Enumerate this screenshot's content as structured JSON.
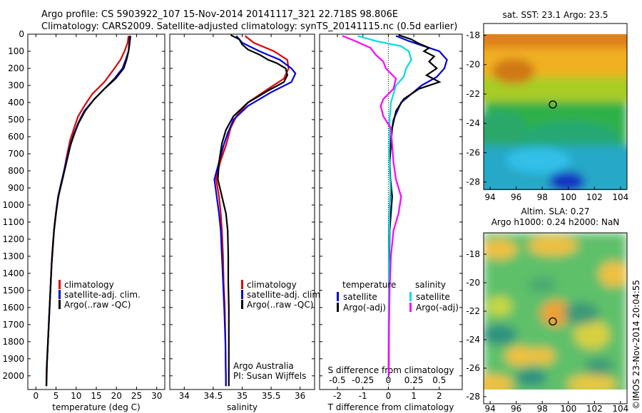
{
  "header": {
    "line1": "Argo profile: CS 5903922_107 15-Nov-2014 20141117_321 22.718S 98.806E",
    "line2": "Climatology: CARS2009. Satellite-adjusted climatology: synTS_20141115.nc (0.5d earlier)"
  },
  "footer": {
    "credit": "©IMOS 23-Nov-2014 20:04:55"
  },
  "chart_data": [
    {
      "type": "line",
      "id": "temperature",
      "xlabel": "temperature (deg C)",
      "ylabel": "",
      "xlim": [
        -2,
        32
      ],
      "ylim": [
        2080,
        0
      ],
      "xticks": [
        0,
        5,
        10,
        15,
        20,
        25,
        30
      ],
      "yticks": [
        0,
        100,
        200,
        300,
        400,
        500,
        600,
        700,
        800,
        900,
        1000,
        1100,
        1200,
        1300,
        1400,
        1500,
        1600,
        1700,
        1800,
        1900,
        2000
      ],
      "legend": [
        "climatology",
        "satellite-adj. clim.",
        "Argo(..raw -QC)"
      ],
      "series": [
        {
          "name": "climatology",
          "color": "#e00000",
          "points": [
            [
              23,
              10
            ],
            [
              22.8,
              50
            ],
            [
              22,
              100
            ],
            [
              21,
              150
            ],
            [
              19.5,
              200
            ],
            [
              17,
              280
            ],
            [
              14,
              350
            ],
            [
              12,
              420
            ],
            [
              10.5,
              480
            ],
            [
              9.5,
              550
            ],
            [
              8.5,
              620
            ],
            [
              7.8,
              700
            ],
            [
              7,
              800
            ],
            [
              6,
              900
            ],
            [
              5.2,
              1000
            ],
            [
              4.7,
              1100
            ],
            [
              4.3,
              1200
            ],
            [
              4,
              1300
            ],
            [
              3.8,
              1400
            ],
            [
              3.6,
              1500
            ],
            [
              3.4,
              1600
            ],
            [
              3.2,
              1700
            ],
            [
              3,
              1800
            ],
            [
              2.8,
              1900
            ],
            [
              2.7,
              2000
            ],
            [
              2.6,
              2060
            ]
          ]
        },
        {
          "name": "satellite-adj. clim.",
          "color": "#0000e0",
          "points": [
            [
              23.5,
              10
            ],
            [
              23.3,
              50
            ],
            [
              23,
              100
            ],
            [
              22.3,
              150
            ],
            [
              21.5,
              200
            ],
            [
              19.5,
              260
            ],
            [
              17,
              320
            ],
            [
              14.5,
              380
            ],
            [
              12,
              450
            ],
            [
              10.5,
              520
            ],
            [
              9.5,
              580
            ],
            [
              8.5,
              650
            ],
            [
              7.5,
              750
            ],
            [
              6.5,
              850
            ],
            [
              5.5,
              950
            ],
            [
              5,
              1050
            ],
            [
              4.5,
              1150
            ],
            [
              4.2,
              1250
            ],
            [
              3.9,
              1350
            ],
            [
              3.7,
              1450
            ],
            [
              3.5,
              1550
            ],
            [
              3.3,
              1650
            ],
            [
              3.1,
              1750
            ],
            [
              2.9,
              1850
            ],
            [
              2.7,
              1950
            ],
            [
              2.6,
              2060
            ]
          ]
        },
        {
          "name": "Argo(..raw -QC)",
          "color": "#000000",
          "points": [
            [
              23.3,
              10
            ],
            [
              23.2,
              50
            ],
            [
              23,
              100
            ],
            [
              22.5,
              150
            ],
            [
              21.8,
              200
            ],
            [
              19.8,
              260
            ],
            [
              17,
              320
            ],
            [
              14.5,
              380
            ],
            [
              12.2,
              450
            ],
            [
              10.6,
              520
            ],
            [
              9.6,
              580
            ],
            [
              8.6,
              650
            ],
            [
              7.6,
              750
            ],
            [
              6.6,
              850
            ],
            [
              5.6,
              950
            ],
            [
              5,
              1050
            ],
            [
              4.5,
              1150
            ],
            [
              4.2,
              1250
            ],
            [
              3.9,
              1350
            ],
            [
              3.7,
              1450
            ],
            [
              3.5,
              1550
            ],
            [
              3.3,
              1650
            ],
            [
              3.1,
              1750
            ],
            [
              2.9,
              1850
            ],
            [
              2.7,
              1950
            ],
            [
              2.6,
              2060
            ]
          ]
        }
      ]
    },
    {
      "type": "line",
      "id": "salinity",
      "xlabel": "salinity",
      "xlim": [
        33.75,
        36.25
      ],
      "ylim": [
        2080,
        0
      ],
      "xticks": [
        34,
        34.5,
        35,
        35.5,
        36
      ],
      "legend": [
        "climatology",
        "satellite-adj. clim.",
        "Argo(..raw -QC)"
      ],
      "annotation": [
        "Argo Australia",
        "PI: Susan Wijffels"
      ],
      "series": [
        {
          "name": "climatology",
          "color": "#e00000",
          "points": [
            [
              35.05,
              10
            ],
            [
              35.2,
              50
            ],
            [
              35.55,
              100
            ],
            [
              35.78,
              150
            ],
            [
              35.8,
              200
            ],
            [
              35.72,
              260
            ],
            [
              35.45,
              320
            ],
            [
              35.1,
              400
            ],
            [
              34.9,
              480
            ],
            [
              34.8,
              550
            ],
            [
              34.72,
              650
            ],
            [
              34.62,
              750
            ],
            [
              34.55,
              850
            ],
            [
              34.6,
              950
            ],
            [
              34.63,
              1050
            ],
            [
              34.65,
              1150
            ],
            [
              34.67,
              1300
            ],
            [
              34.68,
              1450
            ],
            [
              34.7,
              1600
            ],
            [
              34.71,
              1800
            ],
            [
              34.72,
              2060
            ]
          ]
        },
        {
          "name": "satellite-adj. clim.",
          "color": "#0000e0",
          "points": [
            [
              34.9,
              10
            ],
            [
              35.0,
              50
            ],
            [
              35.3,
              100
            ],
            [
              35.65,
              150
            ],
            [
              35.85,
              200
            ],
            [
              35.92,
              230
            ],
            [
              35.85,
              280
            ],
            [
              35.5,
              340
            ],
            [
              35.1,
              420
            ],
            [
              34.85,
              500
            ],
            [
              34.75,
              580
            ],
            [
              34.68,
              650
            ],
            [
              34.6,
              750
            ],
            [
              34.52,
              850
            ],
            [
              34.56,
              950
            ],
            [
              34.6,
              1050
            ],
            [
              34.63,
              1150
            ],
            [
              34.65,
              1300
            ],
            [
              34.67,
              1450
            ],
            [
              34.69,
              1600
            ],
            [
              34.71,
              1800
            ],
            [
              34.72,
              2060
            ]
          ]
        },
        {
          "name": "Argo(..raw -QC)",
          "color": "#000000",
          "points": [
            [
              34.8,
              5
            ],
            [
              34.95,
              30
            ],
            [
              35.0,
              60
            ],
            [
              35.1,
              90
            ],
            [
              35.3,
              120
            ],
            [
              35.45,
              150
            ],
            [
              35.6,
              170
            ],
            [
              35.75,
              200
            ],
            [
              35.78,
              240
            ],
            [
              35.72,
              280
            ],
            [
              35.45,
              330
            ],
            [
              35.1,
              400
            ],
            [
              34.85,
              480
            ],
            [
              34.72,
              560
            ],
            [
              34.65,
              640
            ],
            [
              34.6,
              750
            ],
            [
              34.58,
              850
            ],
            [
              34.65,
              950
            ],
            [
              34.72,
              1050
            ],
            [
              34.75,
              1150
            ],
            [
              34.76,
              1300
            ],
            [
              34.76,
              1450
            ],
            [
              34.77,
              1600
            ],
            [
              34.77,
              1800
            ],
            [
              34.77,
              2060
            ]
          ]
        }
      ]
    },
    {
      "type": "line",
      "id": "difference",
      "xlabel": "T difference from climatology",
      "xlabel2": "S difference from climatology",
      "xlim": [
        -2.7,
        2.9
      ],
      "ylim": [
        2080,
        0
      ],
      "xticks": [
        -2,
        -1,
        0,
        1,
        2
      ],
      "xtick_labels": [
        "-2",
        "-1",
        "0",
        "1",
        "2"
      ],
      "sticks": [
        -0.5,
        -0.25,
        0,
        0.25,
        0.5
      ],
      "stick_labels": [
        "-0.5",
        "-0.25",
        "0",
        "0.25",
        "0.5"
      ],
      "legend_titles": [
        "temperature",
        "salinity"
      ],
      "legend": [
        "satellite",
        "Argo(-adj)",
        "satellite",
        "Argo(-adj)"
      ],
      "series": [
        {
          "name": "satellite",
          "group": "temperature",
          "color": "#0000e0",
          "points": [
            [
              0.3,
              10
            ],
            [
              0.8,
              40
            ],
            [
              1.4,
              70
            ],
            [
              2.0,
              100
            ],
            [
              2.3,
              150
            ],
            [
              2.2,
              200
            ],
            [
              1.9,
              250
            ],
            [
              1.3,
              300
            ],
            [
              0.5,
              400
            ],
            [
              0.2,
              500
            ],
            [
              0.1,
              600
            ],
            [
              0.05,
              700
            ],
            [
              0.05,
              800
            ],
            [
              0.1,
              900
            ],
            [
              0.05,
              1000
            ],
            [
              0.02,
              1200
            ],
            [
              0.02,
              1500
            ],
            [
              0.01,
              2000
            ]
          ]
        },
        {
          "name": "Argo(-adj)",
          "group": "temperature",
          "color": "#000000",
          "points": [
            [
              0.4,
              5
            ],
            [
              0.9,
              30
            ],
            [
              1.2,
              55
            ],
            [
              1.6,
              80
            ],
            [
              1.4,
              100
            ],
            [
              1.8,
              130
            ],
            [
              1.6,
              160
            ],
            [
              1.9,
              200
            ],
            [
              1.5,
              240
            ],
            [
              2.0,
              280
            ],
            [
              1.2,
              320
            ],
            [
              0.6,
              380
            ],
            [
              0.3,
              450
            ],
            [
              0.15,
              550
            ],
            [
              0.1,
              650
            ],
            [
              0.05,
              750
            ],
            [
              0.08,
              850
            ],
            [
              0.15,
              950
            ],
            [
              0.1,
              1050
            ],
            [
              0.05,
              1150
            ],
            [
              0.04,
              1300
            ],
            [
              0.03,
              1500
            ],
            [
              0.02,
              1800
            ],
            [
              0.02,
              2000
            ]
          ]
        },
        {
          "name": "satellite",
          "group": "salinity",
          "color": "#00dddd",
          "points": [
            [
              -1.2,
              10
            ],
            [
              -0.5,
              40
            ],
            [
              0.5,
              70
            ],
            [
              0.8,
              100
            ],
            [
              0.9,
              150
            ],
            [
              0.7,
              200
            ],
            [
              0.6,
              250
            ],
            [
              0.3,
              300
            ],
            [
              0.1,
              400
            ],
            [
              0.05,
              500
            ],
            [
              0.05,
              600
            ],
            [
              0.03,
              700
            ],
            [
              0.05,
              800
            ],
            [
              0.08,
              900
            ],
            [
              0.05,
              1000
            ],
            [
              0.03,
              1200
            ],
            [
              0.02,
              1500
            ],
            [
              0.01,
              2000
            ]
          ]
        },
        {
          "name": "Argo(-adj)",
          "group": "salinity",
          "color": "#ff00ff",
          "points": [
            [
              -1.8,
              10
            ],
            [
              -1.3,
              40
            ],
            [
              -0.7,
              80
            ],
            [
              -0.5,
              120
            ],
            [
              -0.2,
              160
            ],
            [
              -0.1,
              200
            ],
            [
              0.3,
              260
            ],
            [
              0.2,
              320
            ],
            [
              -0.2,
              380
            ],
            [
              -0.3,
              420
            ],
            [
              -0.2,
              480
            ],
            [
              0.1,
              550
            ],
            [
              0.15,
              650
            ],
            [
              0.2,
              750
            ],
            [
              0.3,
              850
            ],
            [
              0.5,
              950
            ],
            [
              0.4,
              1050
            ],
            [
              0.2,
              1150
            ],
            [
              0.1,
              1300
            ],
            [
              0.05,
              1500
            ],
            [
              0.02,
              1800
            ],
            [
              0.01,
              2000
            ]
          ]
        }
      ]
    },
    {
      "type": "heatmap",
      "id": "sst_map",
      "title": "sat. SST: 23.1  Argo: 23.5",
      "xlim": [
        93.5,
        104.5
      ],
      "ylim": [
        -28.5,
        -17.2
      ],
      "xticks": [
        94,
        96,
        98,
        100,
        102,
        104
      ],
      "yticks": [
        -18,
        -20,
        -22,
        -24,
        -26,
        -28
      ],
      "marker": [
        98.806,
        -22.718
      ]
    },
    {
      "type": "heatmap",
      "id": "sla_map",
      "title": "Altim. SLA: 0.27",
      "title2": "Argo h1000: 0.24  h2000: NaN",
      "xlim": [
        93.5,
        104.5
      ],
      "ylim": [
        -28.5,
        -16.5
      ],
      "xticks": [
        94,
        96,
        98,
        100,
        102,
        104
      ],
      "yticks": [
        -18,
        -20,
        -22,
        -24,
        -26,
        -28
      ],
      "marker": [
        98.806,
        -22.718
      ]
    }
  ]
}
